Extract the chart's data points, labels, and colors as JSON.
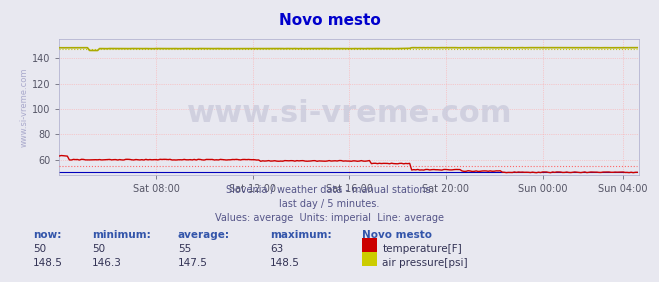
{
  "title": "Novo mesto",
  "title_color": "#0000cc",
  "bg_color": "#e8e8f0",
  "plot_bg_color": "#e8e8f0",
  "watermark": "www.si-vreme.com",
  "subtitle_lines": [
    "Slovenia / weather data - manual stations.",
    "last day / 5 minutes.",
    "Values: average  Units: imperial  Line: average"
  ],
  "ylabel_text": "www.si-vreme.com",
  "xlim": [
    0,
    288
  ],
  "ylim": [
    48,
    155
  ],
  "yticks": [
    60,
    80,
    100,
    120,
    140
  ],
  "xtick_labels": [
    "Sat 08:00",
    "Sat 12:00",
    "Sat 16:00",
    "Sat 20:00",
    "Sun 00:00",
    "Sun 04:00"
  ],
  "xtick_positions": [
    48,
    96,
    144,
    192,
    240,
    280
  ],
  "temp_color": "#cc0000",
  "temp_avg_color": "#ff6666",
  "pressure_color": "#cccc00",
  "pressure_solid_color": "#aaaa00",
  "blue_line_color": "#0000bb",
  "legend_labels": [
    "temperature[F]",
    "air pressure[psi]"
  ],
  "legend_colors": [
    "#cc0000",
    "#cccc00"
  ],
  "stats_headers": [
    "now:",
    "minimum:",
    "average:",
    "maximum:"
  ],
  "stats_temp": [
    "50",
    "50",
    "55",
    "63"
  ],
  "stats_pressure": [
    "148.5",
    "146.3",
    "147.5",
    "148.5"
  ],
  "stats_label": "Novo mesto"
}
